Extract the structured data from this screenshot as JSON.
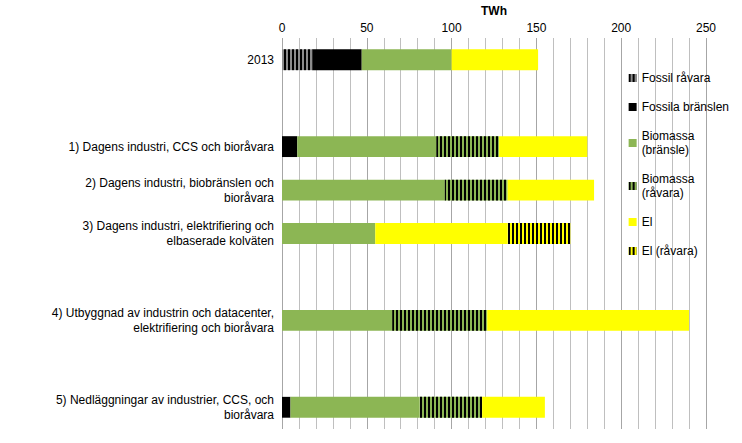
{
  "chart_data": {
    "type": "bar",
    "orientation": "horizontal",
    "stacked": true,
    "grid": true,
    "legend": "right",
    "xlabel": "TWh",
    "xlim": [
      0,
      250
    ],
    "xticks": [
      0,
      50,
      100,
      150,
      200,
      250
    ],
    "categories": [
      "2013",
      null,
      "1) Dagens industri, CCS och bioråvara",
      "2) Dagens industri, biobränslen och\nbioråvara",
      "3) Dagens industri, elektrifiering och\nelbaserade kolväten",
      null,
      "4) Utbyggnad av industrin och datacenter,\nelektrifiering och bioråvara",
      null,
      "5) Nedläggningar av industrier, CCS, och\nbioråvara"
    ],
    "series": [
      {
        "name": "Fossil råvara",
        "color": "#8c8c8c",
        "values": [
          18,
          null,
          0,
          0,
          0,
          null,
          0,
          null,
          0
        ]
      },
      {
        "name": "Fossila bränslen",
        "color": "#000000",
        "values": [
          29,
          null,
          9,
          0,
          0,
          null,
          0,
          null,
          5
        ]
      },
      {
        "name": "Biomassa\n(bränsle)",
        "color": "#8cb654",
        "values": [
          53,
          null,
          82,
          96,
          55,
          null,
          65,
          null,
          76
        ]
      },
      {
        "name": "Biomassa\n(råvara)",
        "color": "#8cb654",
        "values": [
          0,
          null,
          37,
          37,
          0,
          null,
          56,
          null,
          37
        ]
      },
      {
        "name": "El",
        "color": "#ffff00",
        "values": [
          51,
          null,
          52,
          51,
          78,
          null,
          119,
          null,
          37
        ]
      },
      {
        "name": "El (råvara)",
        "color": "#ffff00",
        "values": [
          0,
          null,
          0,
          0,
          37,
          null,
          0,
          null,
          0
        ]
      }
    ]
  }
}
